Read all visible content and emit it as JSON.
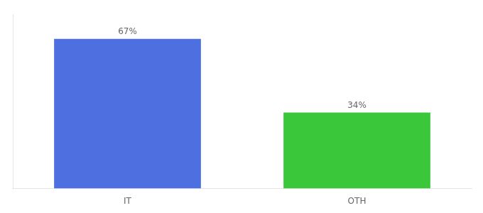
{
  "chart_data": {
    "type": "bar",
    "categories": [
      "IT",
      "OTH"
    ],
    "values": [
      67,
      34
    ],
    "value_labels": [
      "67%",
      "34%"
    ],
    "colors": [
      "#4d6fe0",
      "#3ac73a"
    ],
    "ylim": [
      0,
      78
    ],
    "yticks": [],
    "grid": false,
    "data_labels": true,
    "tick_labels": "x"
  }
}
